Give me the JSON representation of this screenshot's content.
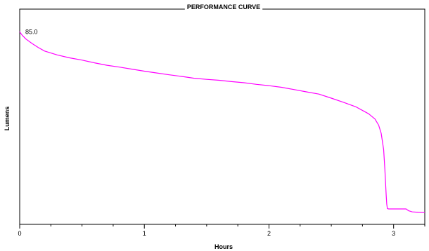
{
  "chart_data": {
    "type": "line",
    "title": "PERFORMANCE CURVE",
    "xlabel": "Hours",
    "ylabel": "Lumens",
    "xlim": [
      0,
      3.25
    ],
    "ylim": [
      0,
      95
    ],
    "x_ticks": [
      0,
      1,
      2,
      3
    ],
    "x_tick_labels": [
      "0",
      "1",
      "2",
      "3"
    ],
    "grid": false,
    "line_color": "#ff00ff",
    "annotation": {
      "text": "85.0",
      "x": 0,
      "y": 85.0
    },
    "series": [
      {
        "x": [
          0,
          0.02,
          0.05,
          0.1,
          0.15,
          0.2,
          0.3,
          0.4,
          0.5,
          0.6,
          0.7,
          0.8,
          0.9,
          1.0,
          1.1,
          1.2,
          1.3,
          1.4,
          1.5,
          1.6,
          1.7,
          1.8,
          1.9,
          2.0,
          2.1,
          2.2,
          2.3,
          2.4,
          2.5,
          2.6,
          2.7,
          2.8,
          2.85,
          2.88,
          2.9,
          2.92,
          2.93,
          2.94,
          2.945,
          2.95,
          2.96,
          3.0,
          3.05,
          3.1,
          3.12,
          3.15,
          3.2,
          3.25
        ],
        "y": [
          85.0,
          83.5,
          81.8,
          79.8,
          78.0,
          76.5,
          74.8,
          73.5,
          72.5,
          71.3,
          70.2,
          69.4,
          68.5,
          67.6,
          66.8,
          66.0,
          65.3,
          64.5,
          64.0,
          63.6,
          63.0,
          62.5,
          61.8,
          61.2,
          60.5,
          59.5,
          58.5,
          57.5,
          55.7,
          53.8,
          51.8,
          48.8,
          46.5,
          43.8,
          40.2,
          33.0,
          24.0,
          13.0,
          9.0,
          7.0,
          6.8,
          6.8,
          6.8,
          6.8,
          6.0,
          5.5,
          5.3,
          5.2
        ]
      }
    ]
  }
}
